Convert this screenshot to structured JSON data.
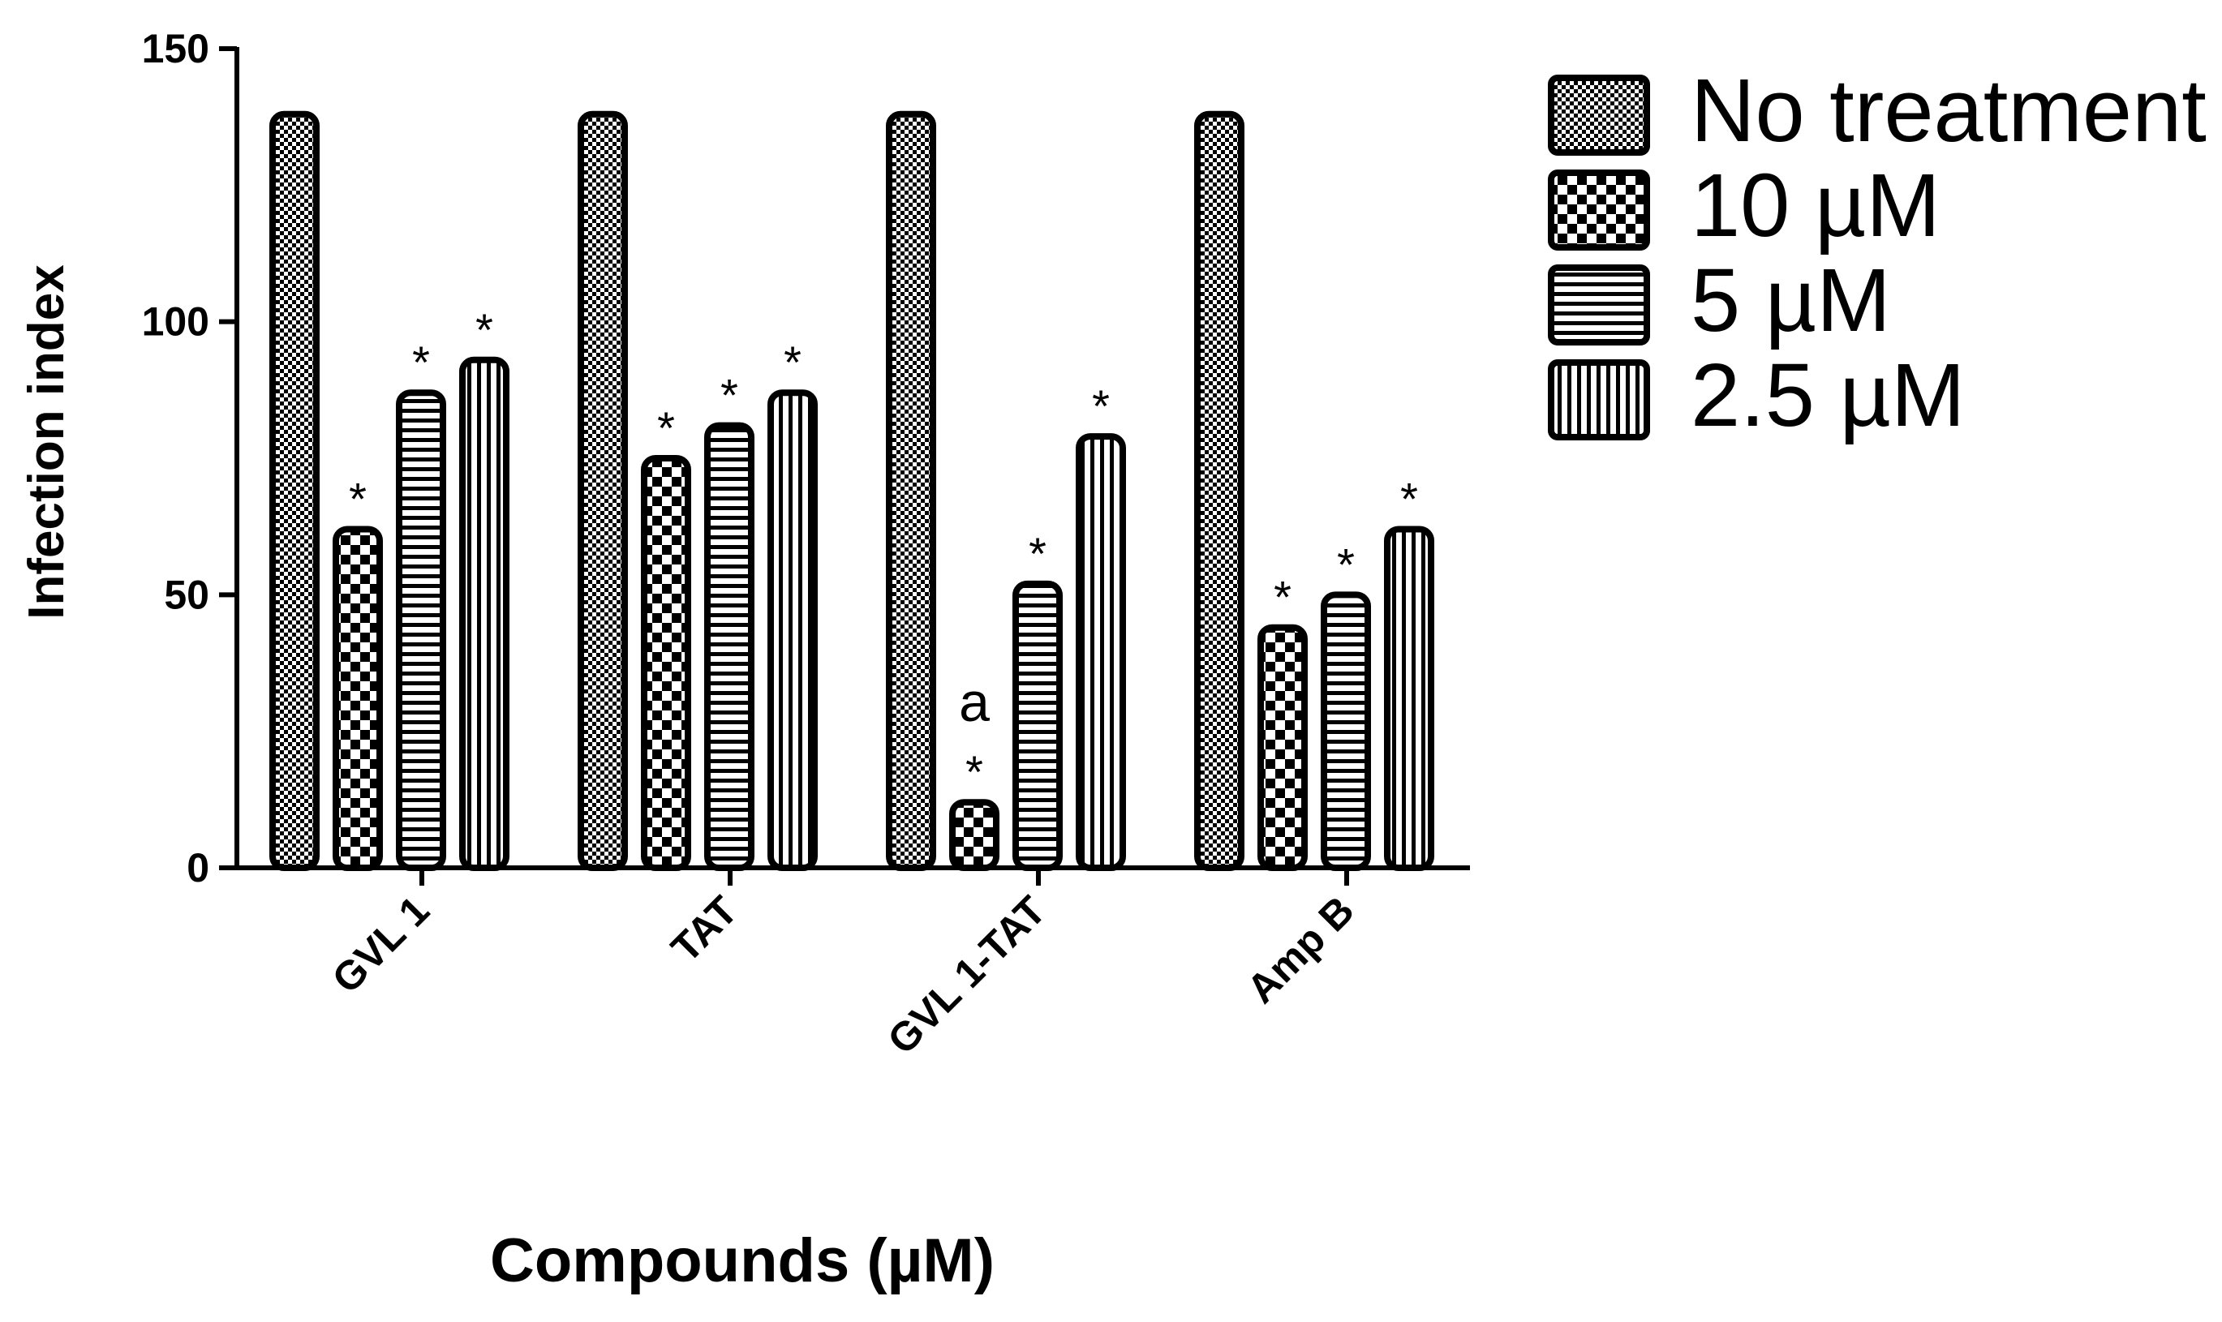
{
  "chart_data": {
    "type": "bar",
    "title": "",
    "xlabel": "Compounds (µM)",
    "ylabel": "Infection index",
    "ylim": [
      0,
      150
    ],
    "yticks": [
      0,
      50,
      100,
      150
    ],
    "categories": [
      "GVL 1",
      "TAT",
      "GVL 1-TAT",
      "Amp B"
    ],
    "series": [
      {
        "name": "No treatment",
        "pattern": "fine-checker",
        "values": [
          138,
          138,
          138,
          138
        ],
        "marks": [
          "",
          "",
          "",
          ""
        ]
      },
      {
        "name": "10 µM",
        "pattern": "coarse-checker",
        "values": [
          62,
          75,
          12,
          44
        ],
        "marks": [
          "*",
          "*",
          "*",
          "*"
        ]
      },
      {
        "name": "5 µM",
        "pattern": "horizontal-lines",
        "values": [
          87,
          81,
          52,
          50
        ],
        "marks": [
          "*",
          "*",
          "*",
          "*"
        ]
      },
      {
        "name": "2.5  µM",
        "pattern": "vertical-lines",
        "values": [
          93,
          87,
          79,
          62
        ],
        "marks": [
          "*",
          "*",
          "*",
          "*"
        ]
      }
    ],
    "annotations": [
      {
        "category": "GVL 1-TAT",
        "series": "10 µM",
        "text": "a"
      }
    ],
    "legend_position": "top-right",
    "grid": false
  }
}
